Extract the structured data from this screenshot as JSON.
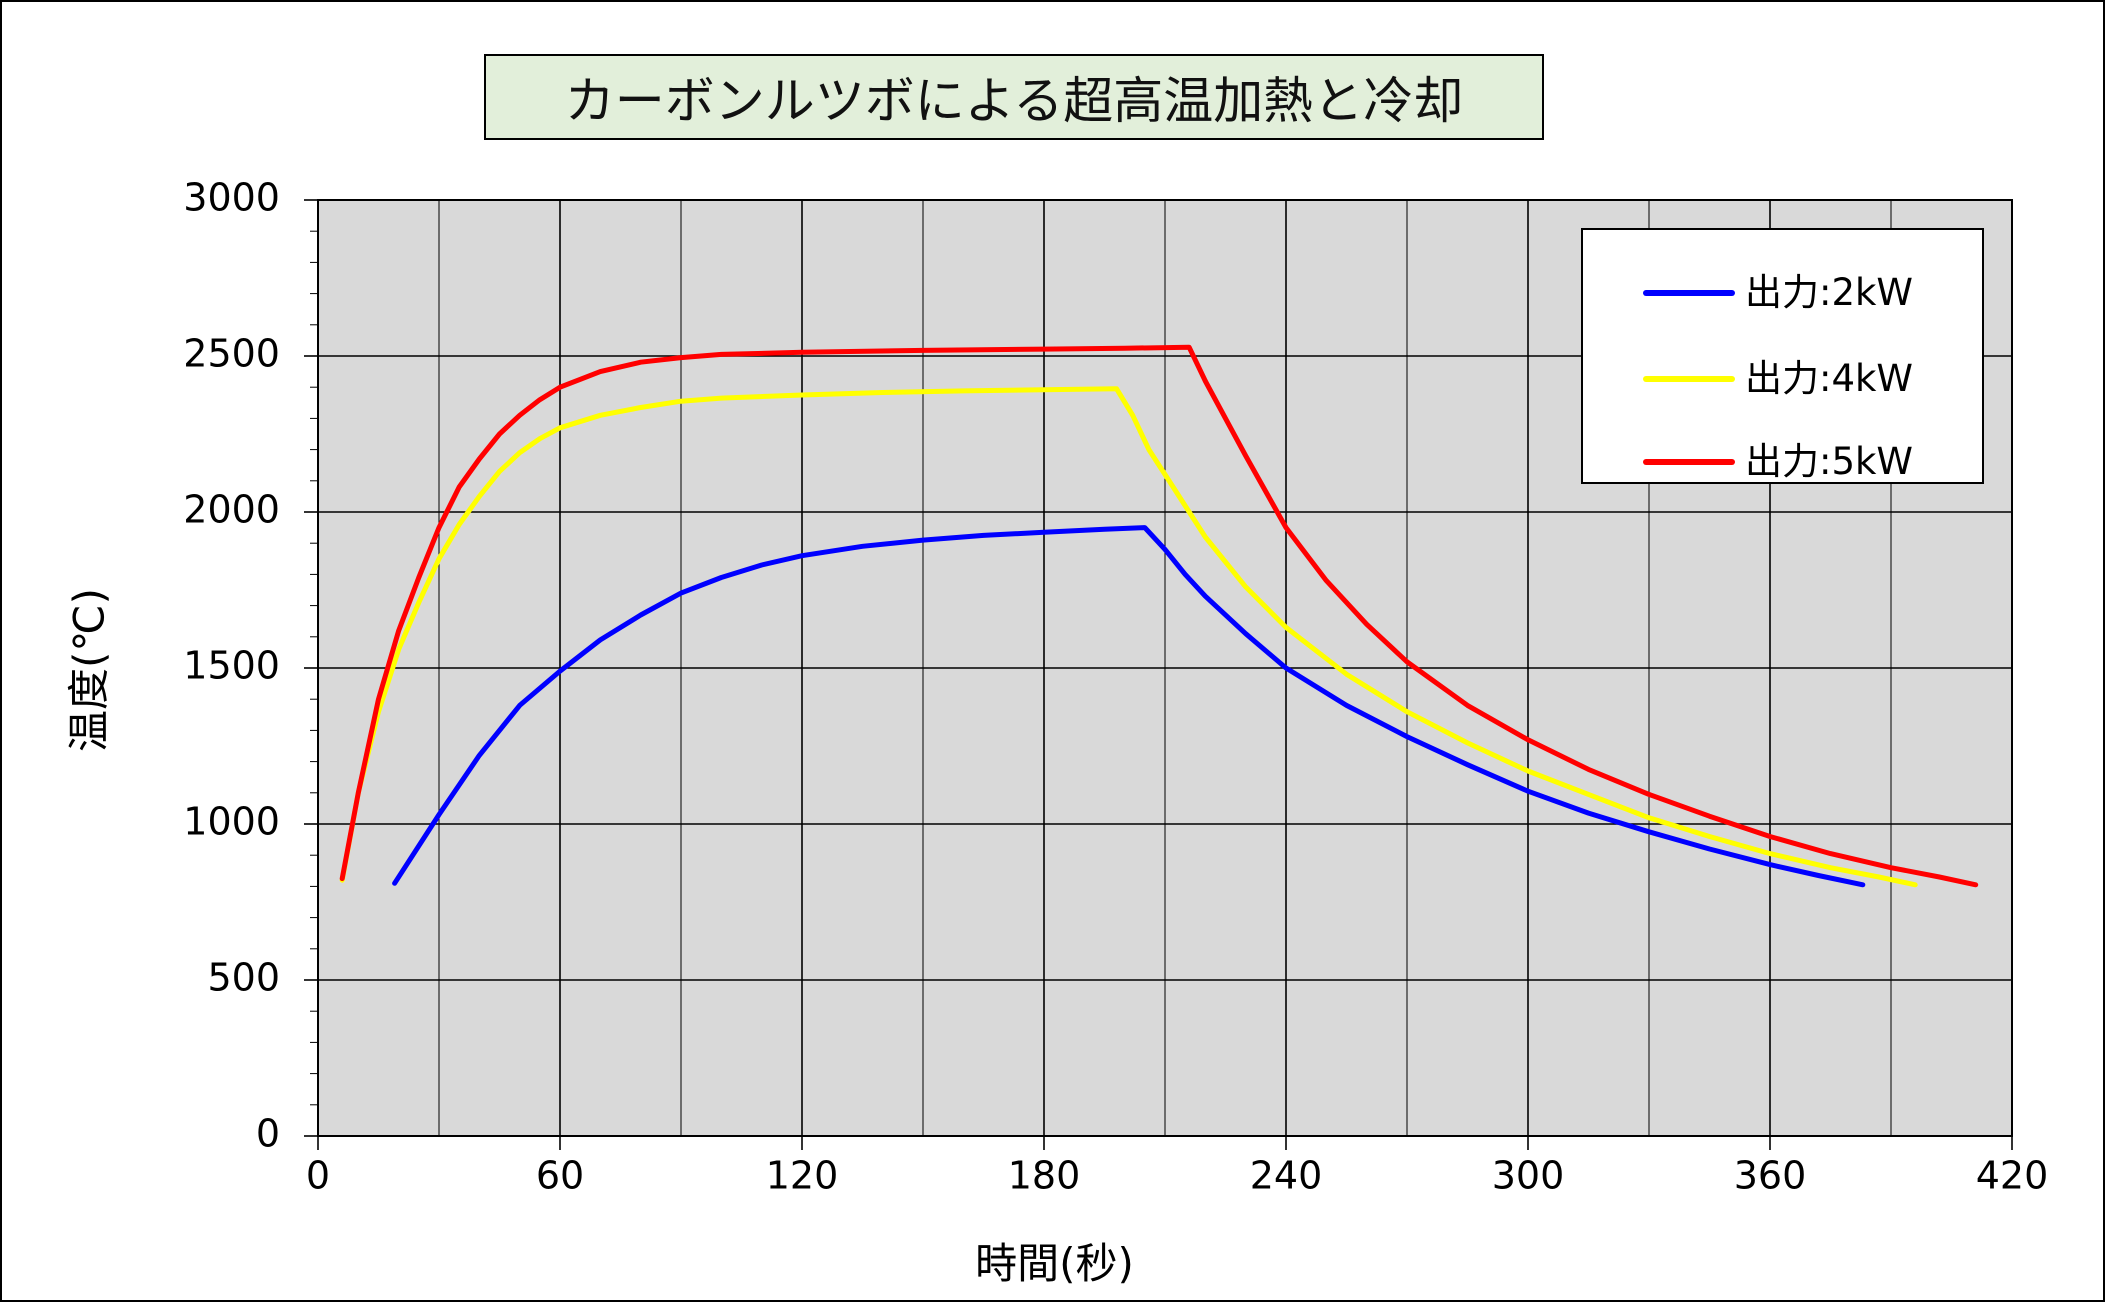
{
  "chart_data": {
    "type": "line",
    "title": "カーボンルツボによる超高温加熱と冷却",
    "xlabel": "時間(秒)",
    "ylabel": "温度(℃)",
    "xlim": [
      0,
      420
    ],
    "ylim": [
      0,
      3000
    ],
    "xticks": [
      0,
      60,
      120,
      180,
      240,
      300,
      360,
      420
    ],
    "yticks": [
      0,
      500,
      1000,
      1500,
      2000,
      2500,
      3000
    ],
    "grid": true,
    "legend_position": "top-right",
    "background_color": "#d9d9d9",
    "series": [
      {
        "name": "出力:2kW",
        "color": "#0000ff",
        "points": [
          [
            19,
            810
          ],
          [
            30,
            1030
          ],
          [
            40,
            1220
          ],
          [
            50,
            1380
          ],
          [
            60,
            1490
          ],
          [
            70,
            1590
          ],
          [
            80,
            1670
          ],
          [
            90,
            1740
          ],
          [
            100,
            1790
          ],
          [
            110,
            1830
          ],
          [
            120,
            1860
          ],
          [
            135,
            1890
          ],
          [
            150,
            1910
          ],
          [
            165,
            1925
          ],
          [
            180,
            1935
          ],
          [
            195,
            1945
          ],
          [
            205,
            1950
          ],
          [
            210,
            1880
          ],
          [
            215,
            1800
          ],
          [
            220,
            1730
          ],
          [
            230,
            1610
          ],
          [
            240,
            1500
          ],
          [
            255,
            1380
          ],
          [
            270,
            1280
          ],
          [
            285,
            1190
          ],
          [
            300,
            1105
          ],
          [
            315,
            1035
          ],
          [
            330,
            975
          ],
          [
            345,
            920
          ],
          [
            360,
            870
          ],
          [
            372,
            835
          ],
          [
            383,
            805
          ]
        ]
      },
      {
        "name": "出力:4kW",
        "color": "#ffff00",
        "points": [
          [
            6,
            820
          ],
          [
            10,
            1100
          ],
          [
            15,
            1360
          ],
          [
            20,
            1560
          ],
          [
            25,
            1710
          ],
          [
            30,
            1850
          ],
          [
            35,
            1960
          ],
          [
            40,
            2050
          ],
          [
            45,
            2130
          ],
          [
            50,
            2190
          ],
          [
            55,
            2235
          ],
          [
            60,
            2270
          ],
          [
            70,
            2310
          ],
          [
            80,
            2335
          ],
          [
            90,
            2355
          ],
          [
            100,
            2365
          ],
          [
            120,
            2375
          ],
          [
            140,
            2383
          ],
          [
            160,
            2388
          ],
          [
            180,
            2392
          ],
          [
            198,
            2395
          ],
          [
            202,
            2310
          ],
          [
            206,
            2200
          ],
          [
            212,
            2080
          ],
          [
            220,
            1920
          ],
          [
            230,
            1760
          ],
          [
            240,
            1630
          ],
          [
            255,
            1480
          ],
          [
            270,
            1360
          ],
          [
            285,
            1260
          ],
          [
            300,
            1170
          ],
          [
            315,
            1095
          ],
          [
            330,
            1020
          ],
          [
            345,
            960
          ],
          [
            360,
            905
          ],
          [
            375,
            860
          ],
          [
            387,
            830
          ],
          [
            396,
            805
          ]
        ]
      },
      {
        "name": "出力:5kW",
        "color": "#ff0000",
        "points": [
          [
            6,
            825
          ],
          [
            10,
            1100
          ],
          [
            15,
            1400
          ],
          [
            20,
            1620
          ],
          [
            25,
            1790
          ],
          [
            30,
            1950
          ],
          [
            35,
            2080
          ],
          [
            40,
            2170
          ],
          [
            45,
            2250
          ],
          [
            50,
            2310
          ],
          [
            55,
            2360
          ],
          [
            60,
            2400
          ],
          [
            70,
            2450
          ],
          [
            80,
            2480
          ],
          [
            90,
            2495
          ],
          [
            100,
            2505
          ],
          [
            120,
            2512
          ],
          [
            150,
            2518
          ],
          [
            180,
            2522
          ],
          [
            200,
            2525
          ],
          [
            216,
            2528
          ],
          [
            220,
            2420
          ],
          [
            225,
            2300
          ],
          [
            230,
            2180
          ],
          [
            240,
            1950
          ],
          [
            250,
            1780
          ],
          [
            260,
            1640
          ],
          [
            270,
            1520
          ],
          [
            285,
            1380
          ],
          [
            300,
            1270
          ],
          [
            315,
            1175
          ],
          [
            330,
            1095
          ],
          [
            345,
            1025
          ],
          [
            360,
            960
          ],
          [
            375,
            905
          ],
          [
            390,
            860
          ],
          [
            402,
            830
          ],
          [
            411,
            805
          ]
        ]
      }
    ]
  }
}
